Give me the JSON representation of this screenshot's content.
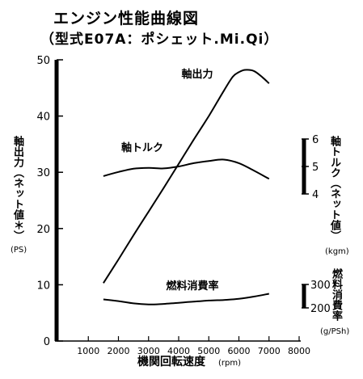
{
  "title": "エンジン性能曲線図",
  "subtitle": "（型式E07A：ポシェット.Mi.Qi）",
  "chart_data": {
    "type": "line",
    "xlabel": "機関回転速度",
    "xunit": "(rpm)",
    "xlim": [
      0,
      8000
    ],
    "xticks": [
      1000,
      2000,
      3000,
      4000,
      5000,
      6000,
      7000,
      8000
    ],
    "left_axis": {
      "label": "軸出力（ネット値＊）",
      "unit": "(PS)",
      "lim": [
        0,
        50
      ],
      "ticks": [
        0,
        10,
        20,
        30,
        40,
        50
      ]
    },
    "right_axes": [
      {
        "label": "軸トルク（ネット値）",
        "unit": "(kgm)",
        "ticks": [
          4,
          5,
          6
        ],
        "lim": [
          4,
          6
        ]
      },
      {
        "label": "燃料消費率",
        "unit": "(g/PSh)",
        "ticks": [
          200,
          300
        ],
        "lim": [
          200,
          300
        ]
      }
    ],
    "series": [
      {
        "name": "軸出力",
        "axis": "left",
        "x": [
          1500,
          2000,
          2500,
          3000,
          3500,
          4000,
          4500,
          5000,
          5500,
          5800,
          6000,
          6200,
          6500,
          6800,
          7000
        ],
        "y": [
          10.3,
          14.5,
          18.8,
          23.0,
          27.2,
          31.5,
          35.8,
          40.0,
          44.5,
          47.0,
          47.8,
          48.2,
          48.0,
          46.8,
          45.8
        ]
      },
      {
        "name": "軸トルク",
        "axis": "torque",
        "x": [
          1500,
          2000,
          2500,
          3000,
          3500,
          4000,
          4500,
          5000,
          5500,
          6000,
          6500,
          7000
        ],
        "y": [
          4.65,
          4.8,
          4.92,
          4.95,
          4.93,
          5.0,
          5.12,
          5.2,
          5.25,
          5.12,
          4.85,
          4.55
        ]
      },
      {
        "name": "燃料消費率",
        "axis": "left",
        "x": [
          1500,
          2000,
          2500,
          3000,
          3500,
          4000,
          4500,
          5000,
          5500,
          6000,
          6500,
          7000
        ],
        "y": [
          7.4,
          7.1,
          6.7,
          6.5,
          6.6,
          6.8,
          7.0,
          7.2,
          7.3,
          7.5,
          7.9,
          8.4
        ]
      }
    ],
    "annotations": [
      "軸出力",
      "軸トルク",
      "燃料消費率"
    ]
  }
}
